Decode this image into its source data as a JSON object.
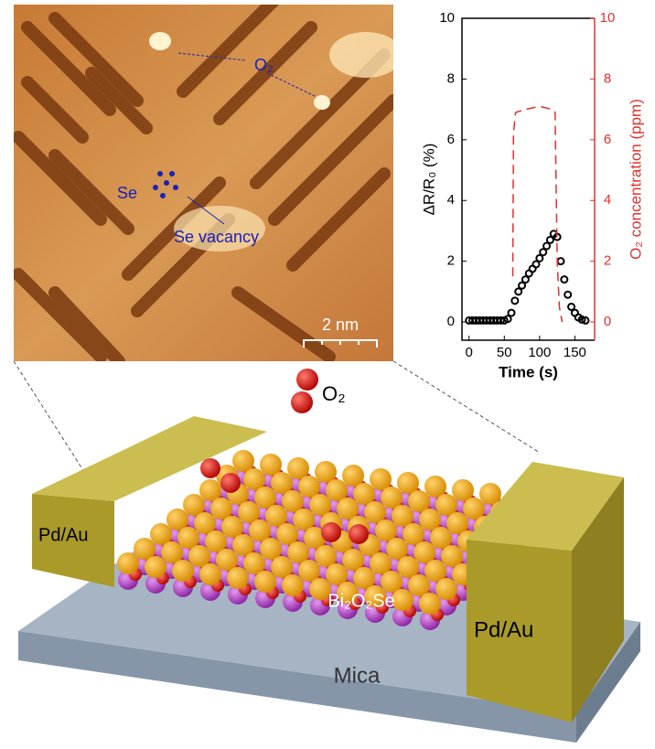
{
  "chart_data": {
    "type": "line",
    "xlabel": "Time (s)",
    "ylabel": "ΔR/R₀ (%)",
    "y2label": "O₂ concentration (ppm)",
    "xlim": [
      -10,
      178
    ],
    "xticks": [
      0,
      50,
      100,
      150
    ],
    "ylim": [
      -0.6,
      10
    ],
    "yticks": [
      0,
      2,
      4,
      6,
      8,
      10
    ],
    "y2lim": [
      -0.6,
      10
    ],
    "y2ticks": [
      0,
      2,
      4,
      6,
      8,
      10
    ],
    "y2color": "#e0302c",
    "series": [
      {
        "color": "#000000",
        "marker": "circle",
        "x": [
          0,
          5,
          10,
          15,
          20,
          25,
          30,
          35,
          40,
          45,
          50,
          55,
          60,
          65,
          70,
          75,
          80,
          85,
          90,
          95,
          100,
          105,
          110,
          115,
          120,
          125,
          130,
          135,
          140,
          145,
          150,
          155,
          160,
          165
        ],
        "values": [
          0.05,
          0.05,
          0.05,
          0.05,
          0.05,
          0.05,
          0.05,
          0.05,
          0.05,
          0.05,
          0.05,
          0.1,
          0.3,
          0.7,
          1.0,
          1.2,
          1.4,
          1.6,
          1.75,
          1.9,
          2.1,
          2.3,
          2.5,
          2.7,
          2.9,
          2.8,
          2.0,
          1.4,
          0.9,
          0.5,
          0.3,
          0.15,
          0.08,
          0.05
        ]
      },
      {
        "color": "#e0302c",
        "marker": "dashed",
        "axis": "y2",
        "x": [
          62,
          63,
          66,
          80,
          100,
          118,
          122,
          125,
          128,
          132
        ],
        "values": [
          1.5,
          6.2,
          6.9,
          7.0,
          7.1,
          7.0,
          6.9,
          2.0,
          0.5,
          0
        ]
      }
    ]
  },
  "labels": {
    "stm_o2": "O₂",
    "stm_se": "Se",
    "stm_vacancy": "Se vacancy",
    "scale_bar": "2 nm",
    "molecule_o2": "O₂",
    "pad_left": "Pd/Au",
    "pad_right": "Pd/Au",
    "crystal": "Bi₂O₂Se",
    "substrate": "Mica"
  }
}
